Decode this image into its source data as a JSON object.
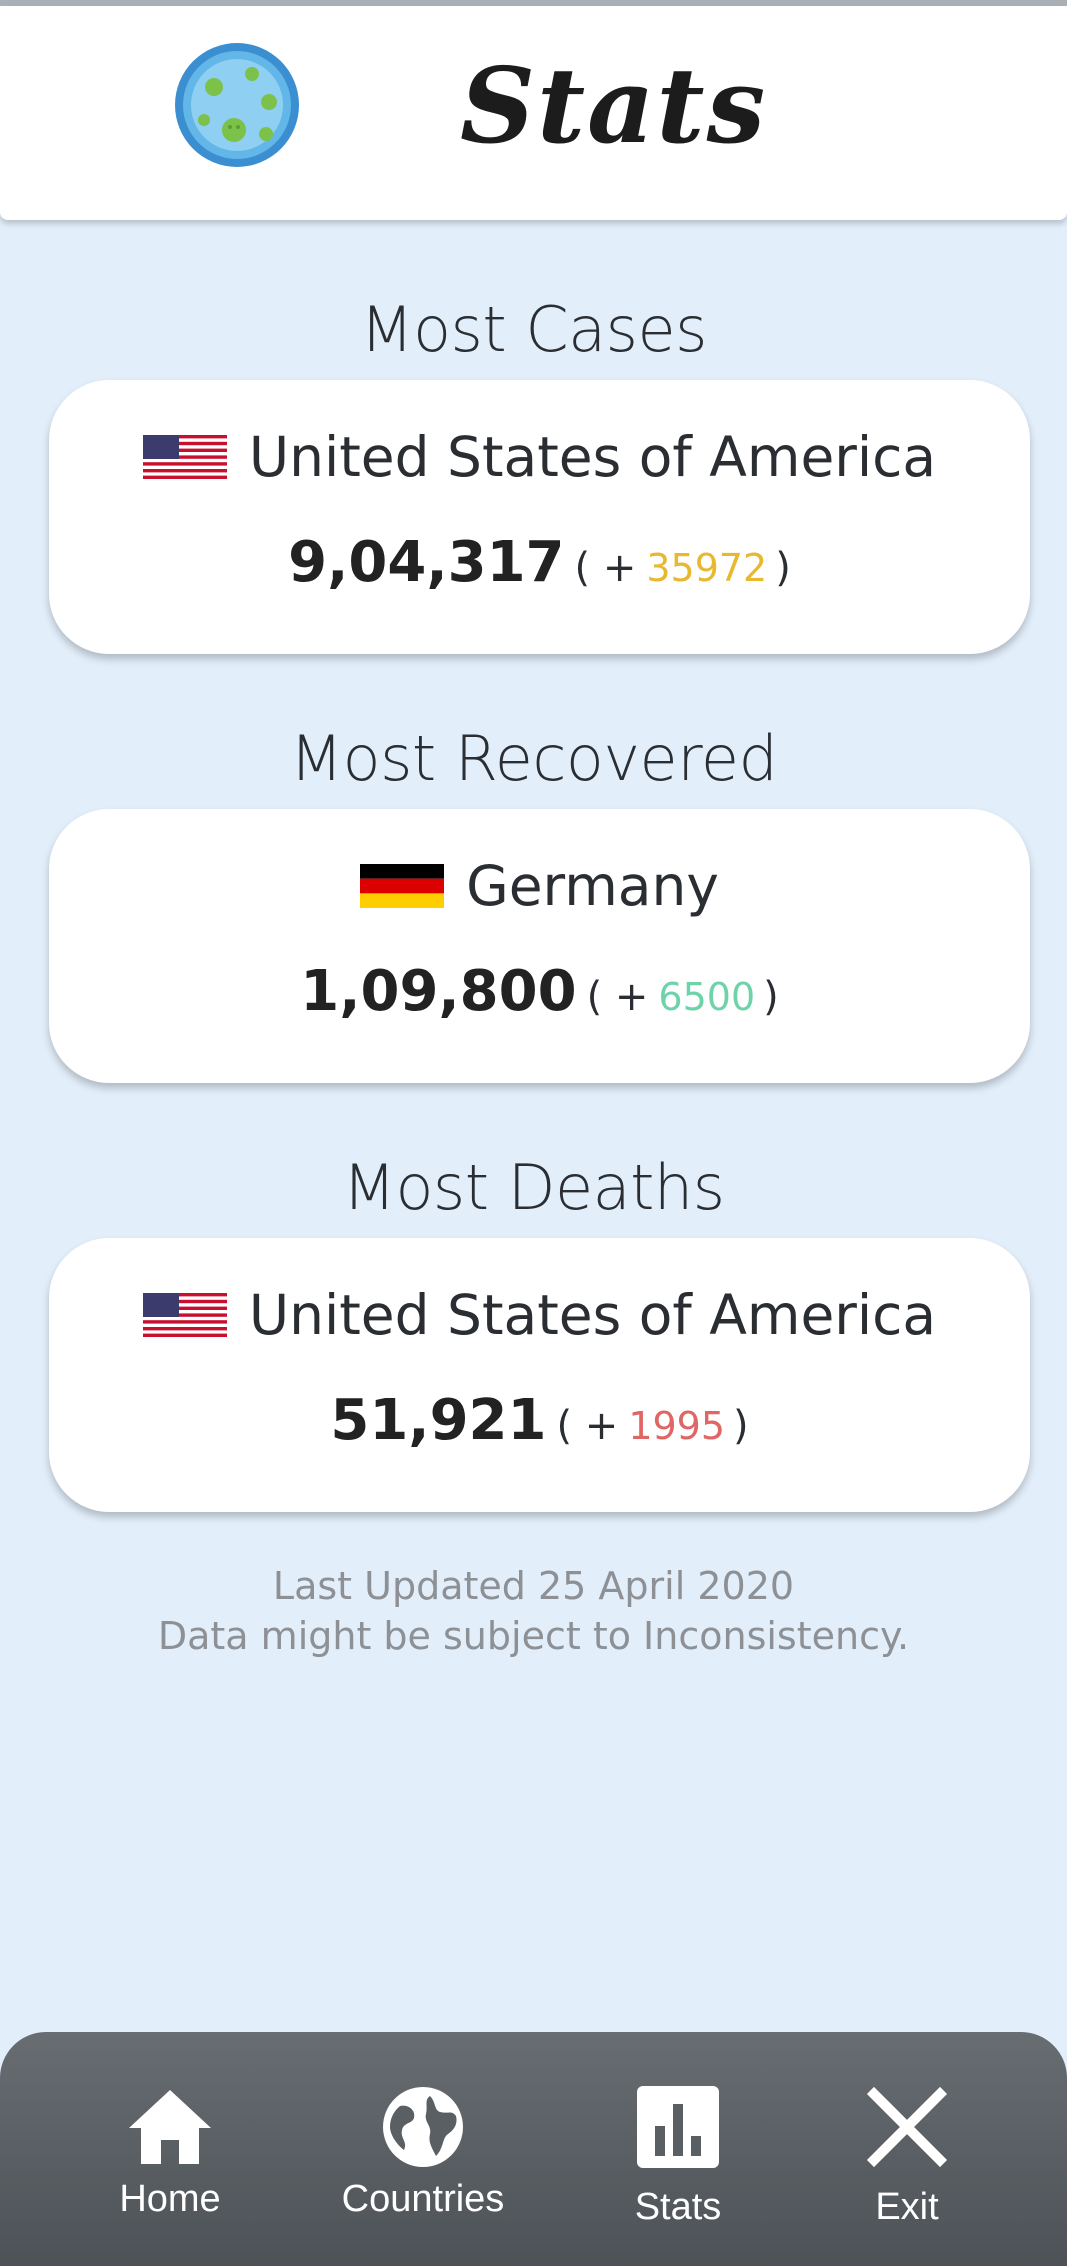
{
  "header": {
    "title": "Stats",
    "logo_icon": "virus-globe-icon"
  },
  "sections": [
    {
      "heading": "Most Cases",
      "country": "United States of America",
      "flag_icon": "usa-flag-icon",
      "total": "9,04,317",
      "open_paren": "( +",
      "delta": "35972",
      "close_paren": ")",
      "delta_color": "#e8b92f"
    },
    {
      "heading": "Most Recovered",
      "country": "Germany",
      "flag_icon": "germany-flag-icon",
      "total": "1,09,800",
      "open_paren": "( +",
      "delta": "6500",
      "close_paren": ")",
      "delta_color": "#6fd3a9"
    },
    {
      "heading": "Most Deaths",
      "country": "United States of America",
      "flag_icon": "usa-flag-icon",
      "total": "51,921",
      "open_paren": "( +",
      "delta": "1995",
      "close_paren": ")",
      "delta_color": "#e06666"
    }
  ],
  "footer": {
    "updated": "Last Updated 25 April 2020",
    "disclaimer": "Data might be subject to Inconsistency."
  },
  "nav": [
    {
      "label": "Home",
      "icon": "home-icon"
    },
    {
      "label": "Countries",
      "icon": "globe-icon"
    },
    {
      "label": "Stats",
      "icon": "bar-chart-icon"
    },
    {
      "label": "Exit",
      "icon": "close-icon"
    }
  ],
  "colors": {
    "background": "#e2eefa",
    "card": "#ffffff",
    "navbar": "#5a5f64"
  }
}
